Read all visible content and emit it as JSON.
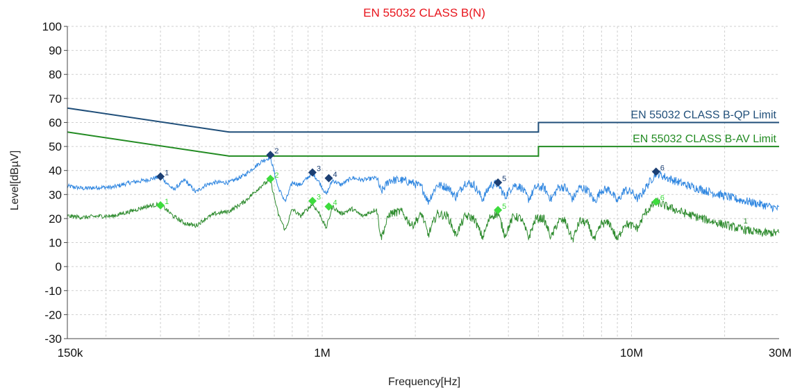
{
  "chart_data": {
    "type": "line",
    "title": "EN 55032 CLASS B(N)",
    "xlabel": "Frequency[Hz]",
    "ylabel": "Level[dBµV]",
    "xscale": "log",
    "xlim": [
      150000,
      30000000
    ],
    "ylim": [
      -30,
      100
    ],
    "grid": true,
    "x_ticks": [
      {
        "value": 150000,
        "label": "150k"
      },
      {
        "value": 1000000,
        "label": "1M"
      },
      {
        "value": 10000000,
        "label": "10M"
      },
      {
        "value": 30000000,
        "label": "30M"
      }
    ],
    "y_ticks": [
      {
        "value": 100,
        "label": "100"
      },
      {
        "value": 90,
        "label": "90"
      },
      {
        "value": 80,
        "label": "80"
      },
      {
        "value": 70,
        "label": "70"
      },
      {
        "value": 60,
        "label": "60"
      },
      {
        "value": 50,
        "label": "50"
      },
      {
        "value": 40,
        "label": "40"
      },
      {
        "value": 30,
        "label": "30"
      },
      {
        "value": 20,
        "label": "20"
      },
      {
        "value": 10,
        "label": "10"
      },
      {
        "value": 0,
        "label": "0"
      },
      {
        "value": -10,
        "label": "-10"
      },
      {
        "value": -20,
        "label": "-20"
      },
      {
        "value": -30,
        "label": "-30"
      }
    ],
    "limits": [
      {
        "name": "EN 55032 CLASS B-QP Limit",
        "color": "#1f4e79",
        "points": [
          [
            150000,
            66
          ],
          [
            500000,
            56
          ],
          [
            5000000,
            56
          ],
          [
            5000000,
            60
          ],
          [
            30000000,
            60
          ]
        ]
      },
      {
        "name": "EN 55032 CLASS B-AV Limit",
        "color": "#228b22",
        "points": [
          [
            150000,
            56
          ],
          [
            500000,
            46
          ],
          [
            5000000,
            46
          ],
          [
            5000000,
            50
          ],
          [
            30000000,
            50
          ]
        ]
      }
    ],
    "series": [
      {
        "color": "#2f86e0",
        "points": [
          [
            150000,
            33.5
          ],
          [
            170000,
            32.5
          ],
          [
            190000,
            33
          ],
          [
            210000,
            33
          ],
          [
            240000,
            35
          ],
          [
            270000,
            36
          ],
          [
            300000,
            37.5
          ],
          [
            330000,
            32
          ],
          [
            360000,
            36
          ],
          [
            390000,
            31
          ],
          [
            420000,
            34
          ],
          [
            450000,
            35
          ],
          [
            500000,
            35
          ],
          [
            560000,
            38
          ],
          [
            640000,
            44
          ],
          [
            680000,
            45.5
          ],
          [
            720000,
            33
          ],
          [
            760000,
            27
          ],
          [
            800000,
            35
          ],
          [
            850000,
            34
          ],
          [
            930000,
            39
          ],
          [
            980000,
            35
          ],
          [
            1030000,
            30
          ],
          [
            1080000,
            36
          ],
          [
            1150000,
            34
          ],
          [
            1250000,
            37
          ],
          [
            1350000,
            36
          ],
          [
            1500000,
            37
          ],
          [
            1550000,
            31
          ],
          [
            1650000,
            36
          ],
          [
            1800000,
            36
          ],
          [
            1950000,
            35
          ],
          [
            2100000,
            33
          ],
          [
            2200000,
            27
          ],
          [
            2350000,
            34
          ],
          [
            2550000,
            33
          ],
          [
            2700000,
            29
          ],
          [
            2900000,
            35
          ],
          [
            3100000,
            34
          ],
          [
            3300000,
            28
          ],
          [
            3500000,
            34
          ],
          [
            3700000,
            34.5
          ],
          [
            3900000,
            29
          ],
          [
            4150000,
            34
          ],
          [
            4400000,
            33
          ],
          [
            4650000,
            28
          ],
          [
            4900000,
            33
          ],
          [
            5200000,
            33
          ],
          [
            5500000,
            28
          ],
          [
            5800000,
            33
          ],
          [
            6100000,
            33
          ],
          [
            6450000,
            28
          ],
          [
            6800000,
            33
          ],
          [
            7200000,
            32
          ],
          [
            7600000,
            27
          ],
          [
            8000000,
            32
          ],
          [
            8500000,
            32
          ],
          [
            9000000,
            27
          ],
          [
            9500000,
            32
          ],
          [
            10000000,
            31
          ],
          [
            10500000,
            28
          ],
          [
            11000000,
            32
          ],
          [
            12000000,
            39
          ],
          [
            13000000,
            37
          ],
          [
            15000000,
            34
          ],
          [
            18000000,
            31
          ],
          [
            22000000,
            28
          ],
          [
            26000000,
            26
          ],
          [
            30000000,
            24
          ]
        ]
      },
      {
        "color": "#2e8b2e",
        "points": [
          [
            150000,
            21
          ],
          [
            170000,
            20.5
          ],
          [
            190000,
            21
          ],
          [
            210000,
            21
          ],
          [
            240000,
            23
          ],
          [
            270000,
            25
          ],
          [
            300000,
            26
          ],
          [
            330000,
            21
          ],
          [
            360000,
            18
          ],
          [
            390000,
            17
          ],
          [
            420000,
            20
          ],
          [
            450000,
            22
          ],
          [
            500000,
            23
          ],
          [
            560000,
            27
          ],
          [
            640000,
            34
          ],
          [
            680000,
            36
          ],
          [
            720000,
            22
          ],
          [
            760000,
            15
          ],
          [
            800000,
            24
          ],
          [
            850000,
            21
          ],
          [
            930000,
            26
          ],
          [
            980000,
            22
          ],
          [
            1030000,
            16
          ],
          [
            1080000,
            25
          ],
          [
            1150000,
            22
          ],
          [
            1250000,
            24
          ],
          [
            1350000,
            21
          ],
          [
            1500000,
            24
          ],
          [
            1550000,
            12
          ],
          [
            1650000,
            22
          ],
          [
            1800000,
            23
          ],
          [
            1950000,
            17
          ],
          [
            2100000,
            22
          ],
          [
            2200000,
            13
          ],
          [
            2350000,
            22
          ],
          [
            2550000,
            21
          ],
          [
            2700000,
            13
          ],
          [
            2900000,
            21
          ],
          [
            3100000,
            20
          ],
          [
            3300000,
            12
          ],
          [
            3500000,
            21
          ],
          [
            3700000,
            22
          ],
          [
            3900000,
            13
          ],
          [
            4150000,
            21
          ],
          [
            4400000,
            20
          ],
          [
            4650000,
            12
          ],
          [
            4900000,
            20
          ],
          [
            5200000,
            20
          ],
          [
            5500000,
            12
          ],
          [
            5800000,
            19
          ],
          [
            6100000,
            19
          ],
          [
            6450000,
            11
          ],
          [
            6800000,
            19
          ],
          [
            7200000,
            18
          ],
          [
            7600000,
            11
          ],
          [
            8000000,
            18
          ],
          [
            8500000,
            18
          ],
          [
            9000000,
            11
          ],
          [
            9500000,
            18
          ],
          [
            10000000,
            17
          ],
          [
            10500000,
            16
          ],
          [
            11000000,
            22
          ],
          [
            12000000,
            27
          ],
          [
            13000000,
            25
          ],
          [
            15000000,
            22
          ],
          [
            18000000,
            19
          ],
          [
            22000000,
            16
          ],
          [
            26000000,
            14
          ],
          [
            30000000,
            14
          ]
        ]
      }
    ],
    "markers": [
      {
        "group": "qp",
        "label": "1",
        "x": 300000,
        "y": 37.5,
        "color": "#1c3f73"
      },
      {
        "group": "qp",
        "label": "2",
        "x": 680000,
        "y": 46.5,
        "color": "#1c3f73"
      },
      {
        "group": "qp",
        "label": "3",
        "x": 930000,
        "y": 39.2,
        "color": "#1c3f73"
      },
      {
        "group": "qp",
        "label": "4",
        "x": 1050000,
        "y": 36.8,
        "color": "#1c3f73"
      },
      {
        "group": "qp",
        "label": "5",
        "x": 3700000,
        "y": 35,
        "color": "#1c3f73"
      },
      {
        "group": "qp",
        "label": "6",
        "x": 12000000,
        "y": 39.5,
        "color": "#1c3f73"
      },
      {
        "group": "av",
        "label": "1",
        "x": 300000,
        "y": 25.5,
        "color": "#3ddc3d"
      },
      {
        "group": "av",
        "label": "2",
        "x": 680000,
        "y": 36.5,
        "color": "#3ddc3d"
      },
      {
        "group": "av",
        "label": "3",
        "x": 930000,
        "y": 27.3,
        "color": "#3ddc3d"
      },
      {
        "group": "av",
        "label": "4",
        "x": 1050000,
        "y": 25,
        "color": "#3ddc3d"
      },
      {
        "group": "av",
        "label": "5",
        "x": 3700000,
        "y": 23.5,
        "color": "#3ddc3d"
      },
      {
        "group": "av",
        "label": "6",
        "x": 12000000,
        "y": 27,
        "color": "#3ddc3d"
      }
    ],
    "annotations": [
      {
        "text": "1",
        "x": 23000000,
        "y": 18,
        "color": "#2e8b2e"
      }
    ]
  }
}
